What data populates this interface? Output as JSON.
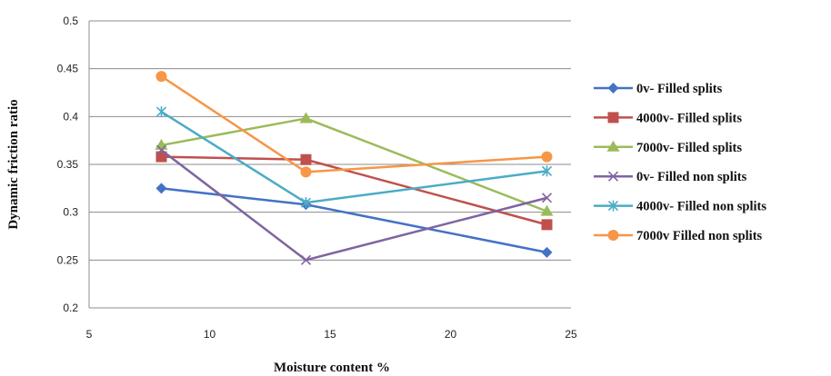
{
  "chart_data": {
    "type": "line",
    "title": "",
    "xlabel": "Moisture content %",
    "ylabel": "Dynamic friction ratio",
    "xlim": [
      5,
      25
    ],
    "ylim": [
      0.2,
      0.5
    ],
    "x_ticks": [
      "5",
      "10",
      "15",
      "20",
      "25"
    ],
    "y_ticks": [
      "0.2",
      "0.25",
      "0.3",
      "0.35",
      "0.4",
      "0.45",
      "0.5"
    ],
    "grid": "horizontal",
    "legend_position": "right",
    "x": [
      8,
      14,
      24
    ],
    "series": [
      {
        "name": "0v- Filled splits",
        "values": [
          0.325,
          0.308,
          0.258
        ],
        "color": "#4472C4",
        "marker": "diamond"
      },
      {
        "name": "4000v- Filled splits",
        "values": [
          0.358,
          0.355,
          0.287
        ],
        "color": "#C0504D",
        "marker": "square"
      },
      {
        "name": "7000v- Filled splits",
        "values": [
          0.37,
          0.398,
          0.301
        ],
        "color": "#9BBB59",
        "marker": "triangle"
      },
      {
        "name": "0v- Filled non splits",
        "values": [
          0.365,
          0.25,
          0.315
        ],
        "color": "#8064A2",
        "marker": "x"
      },
      {
        "name": "4000v- Filled non splits",
        "values": [
          0.405,
          0.31,
          0.343
        ],
        "color": "#4BACC6",
        "marker": "star"
      },
      {
        "name": "7000v Filled non splits",
        "values": [
          0.442,
          0.342,
          0.358
        ],
        "color": "#F79646",
        "marker": "circle"
      }
    ]
  }
}
